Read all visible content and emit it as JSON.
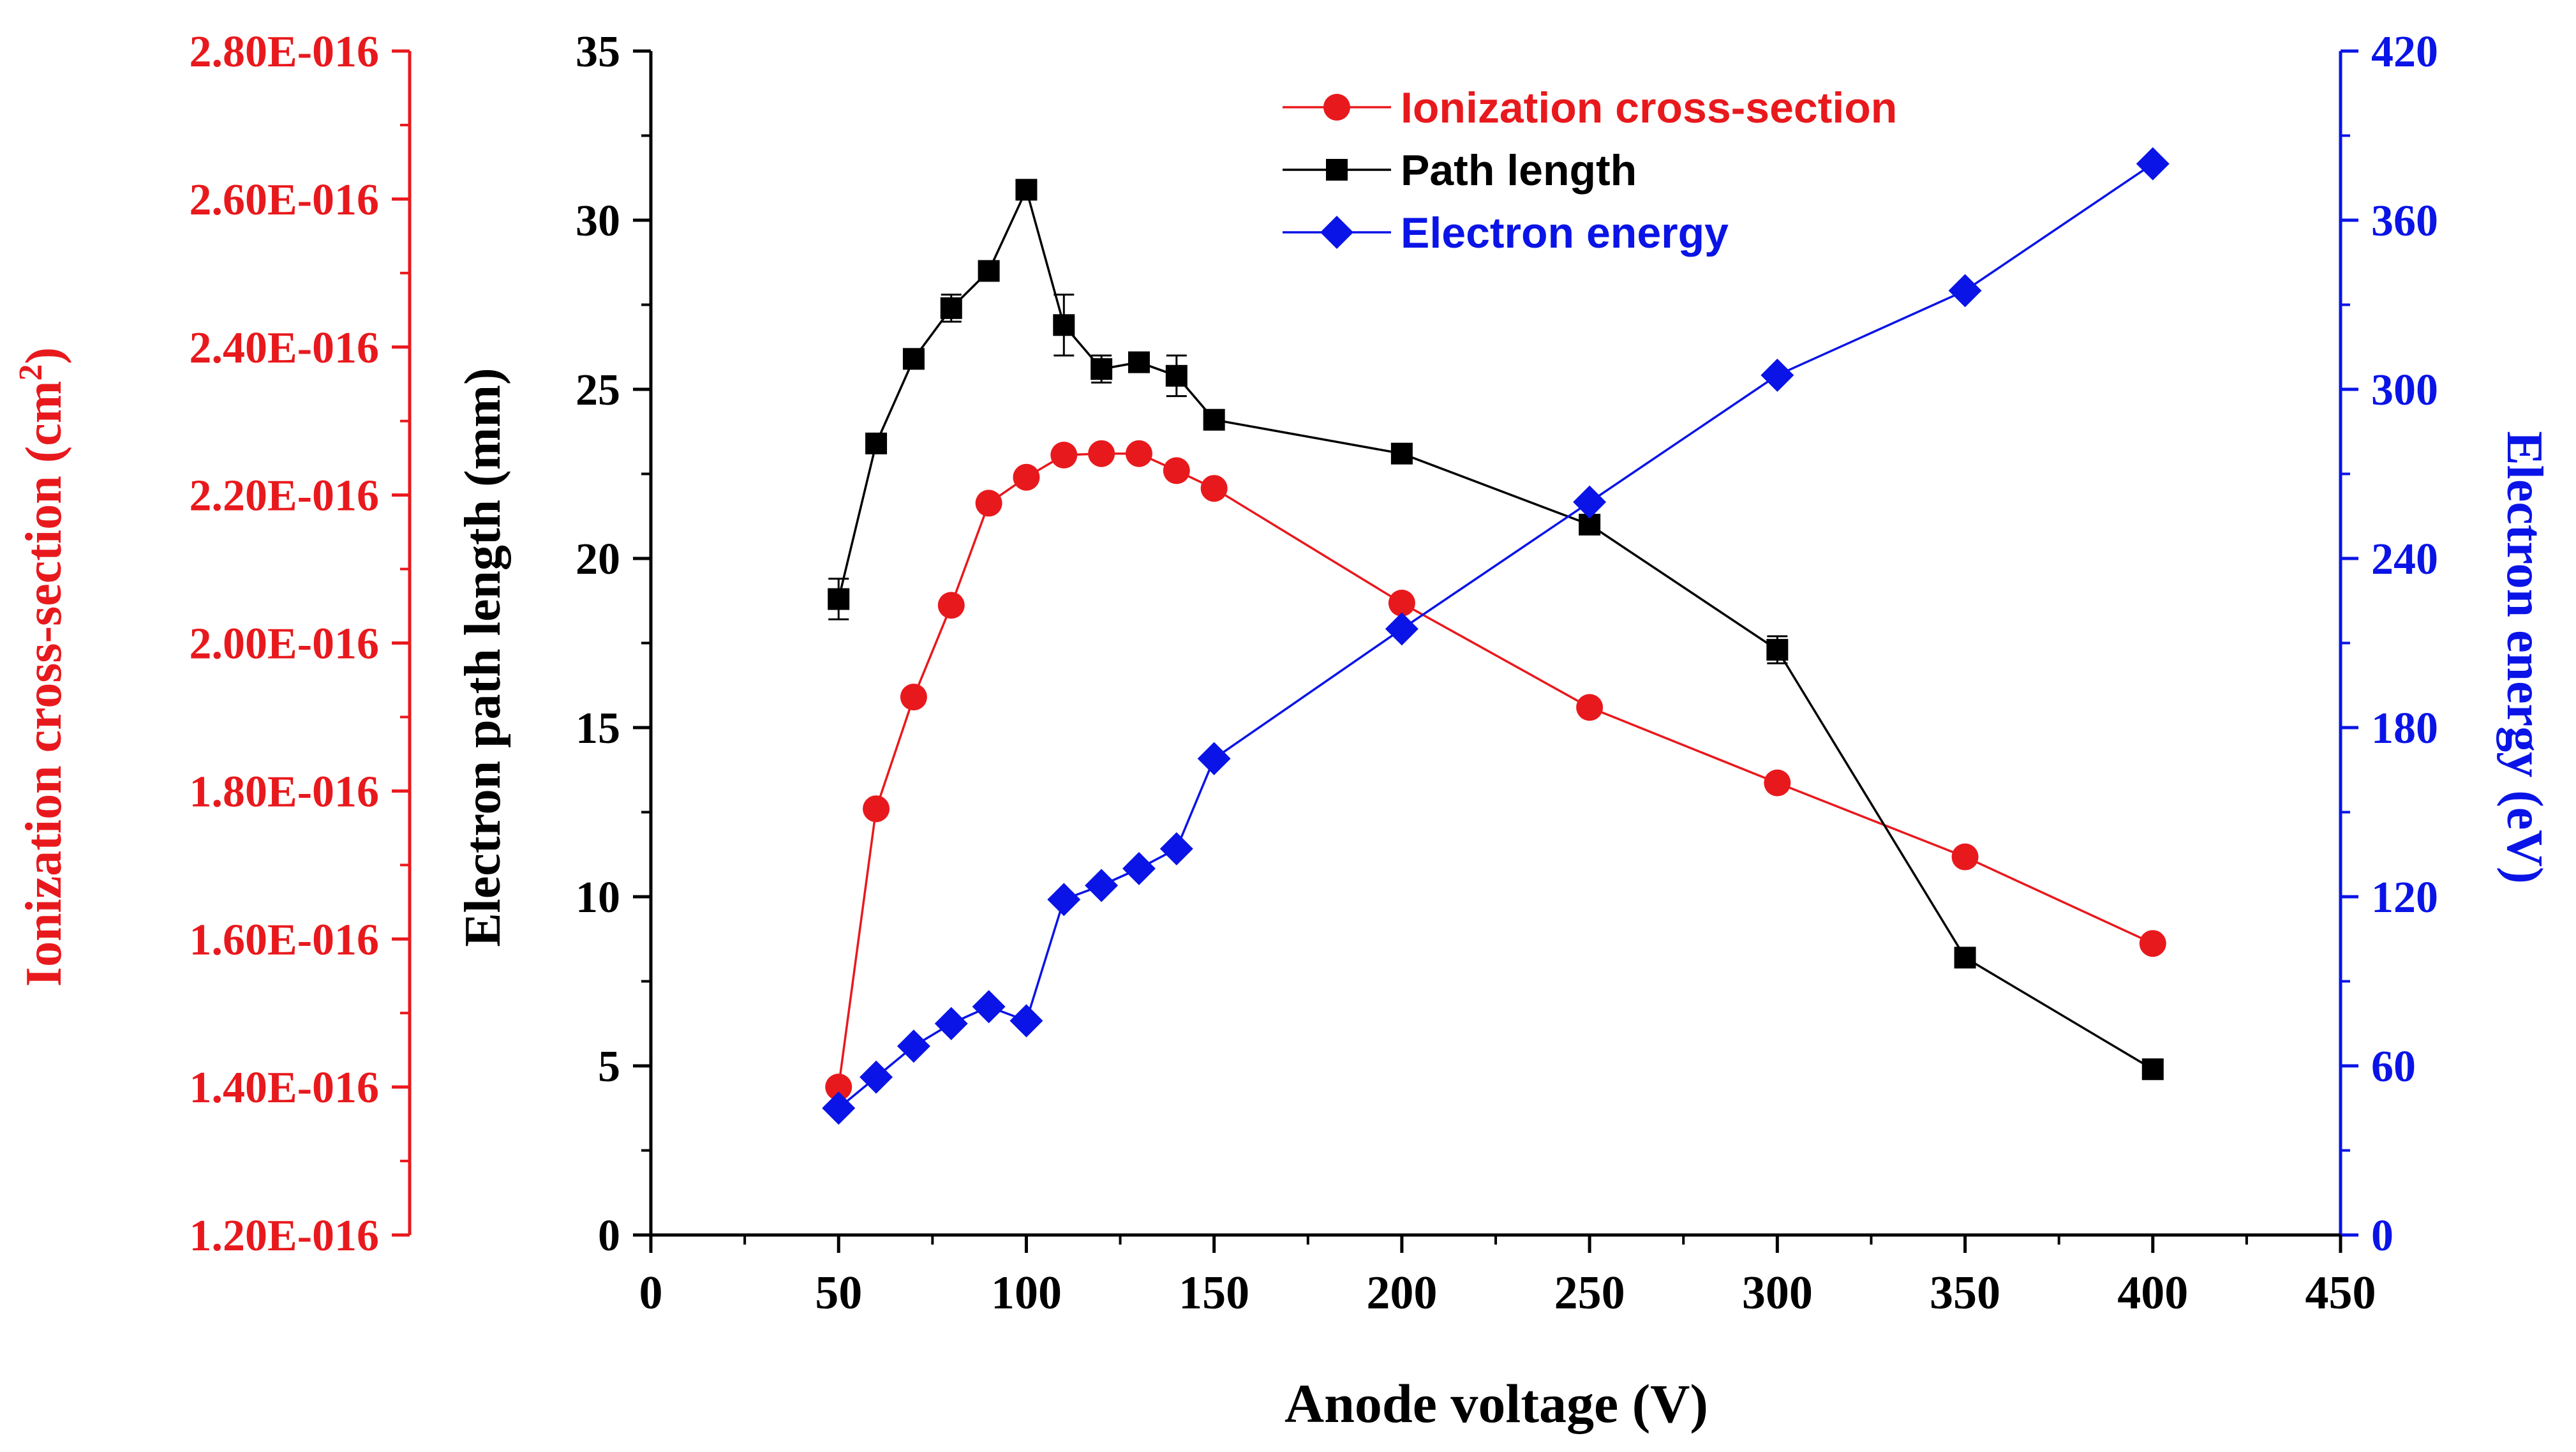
{
  "chart_data": {
    "type": "line",
    "x": [
      50,
      60,
      70,
      80,
      90,
      100,
      110,
      120,
      130,
      140,
      150,
      200,
      250,
      300,
      350,
      400
    ],
    "xlabel": "Anode voltage (V)",
    "xlim": [
      0,
      450
    ],
    "x_ticks": [
      "0",
      "50",
      "100",
      "150",
      "200",
      "250",
      "300",
      "350",
      "400",
      "450"
    ],
    "legend_position": "top-center",
    "grid": false,
    "axes": {
      "left_outer": {
        "label": "Ionization cross-section (cm",
        "label_sup": "2",
        "label_close": ")",
        "lim": [
          1.2e-16,
          2.8e-16
        ],
        "ticks": [
          "1.20E-016",
          "1.40E-016",
          "1.60E-016",
          "1.80E-016",
          "2.00E-016",
          "2.20E-016",
          "2.40E-016",
          "2.60E-016",
          "2.80E-016"
        ],
        "color": "#e8191d"
      },
      "left": {
        "label": "Electron path length (mm)",
        "lim": [
          0,
          35
        ],
        "ticks": [
          "0",
          "5",
          "10",
          "15",
          "20",
          "25",
          "30",
          "35"
        ],
        "color": "#000000"
      },
      "right": {
        "label": "Electron energy (eV)",
        "lim": [
          0,
          420
        ],
        "ticks": [
          "0",
          "60",
          "120",
          "180",
          "240",
          "300",
          "360",
          "420"
        ],
        "color": "#0a14e6"
      }
    },
    "series": [
      {
        "name": "Ionization cross-section",
        "axis": "left_outer",
        "color": "#e8191d",
        "marker": "circle",
        "values": [
          1.4e-16,
          1.776e-16,
          1.927e-16,
          2.051e-16,
          2.189e-16,
          2.224e-16,
          2.254e-16,
          2.256e-16,
          2.256e-16,
          2.233e-16,
          2.209e-16,
          2.054e-16,
          1.913e-16,
          1.811e-16,
          1.711e-16,
          1.594e-16
        ]
      },
      {
        "name": "Path length",
        "axis": "left",
        "color": "#000000",
        "marker": "square",
        "values": [
          18.8,
          23.4,
          25.9,
          27.4,
          28.5,
          30.9,
          26.9,
          25.6,
          25.8,
          25.4,
          24.1,
          23.1,
          21.0,
          17.3,
          8.2,
          4.9
        ],
        "errors": [
          0.6,
          0,
          0,
          0.4,
          0,
          0,
          0.9,
          0.4,
          0,
          0.6,
          0,
          0,
          0,
          0.4,
          0,
          0
        ]
      },
      {
        "name": "Electron energy",
        "axis": "right",
        "color": "#0a14e6",
        "marker": "diamond",
        "values": [
          45,
          56,
          67,
          75,
          81,
          76,
          119,
          124,
          130,
          137,
          169,
          215,
          260,
          305,
          335,
          380
        ]
      }
    ]
  }
}
